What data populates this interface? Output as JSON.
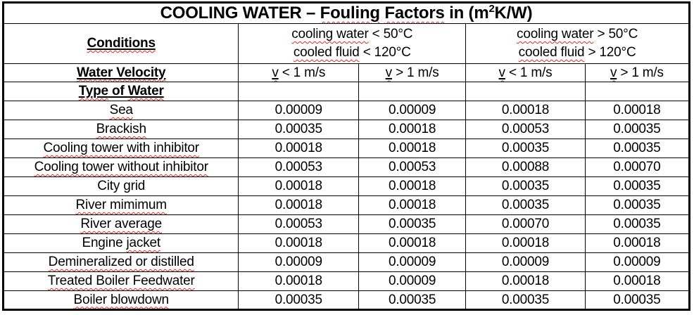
{
  "colors": {
    "squiggle_red": "#e8251c",
    "squiggle_blue": "#2565c9",
    "border": "#000000",
    "background": "#ffffff",
    "text": "#000000"
  },
  "title": {
    "text": "COOLING WATER – Fouling Factors in (m2K/W)",
    "parts": [
      [
        "COOLING WATER – ",
        ""
      ],
      [
        "Fouling",
        "sq"
      ],
      [
        " ",
        ""
      ],
      [
        "Factors",
        "sq"
      ],
      [
        " in (m",
        ""
      ],
      [
        "2",
        "sup"
      ],
      [
        "K/W)",
        ""
      ]
    ]
  },
  "header": {
    "conditions": {
      "parts": [
        [
          "Conditions",
          "sq"
        ]
      ]
    },
    "group_left": {
      "line1_parts": [
        [
          "cooling water",
          "sq"
        ],
        [
          " < 50°C",
          ""
        ]
      ],
      "line2_parts": [
        [
          "cooled fluid",
          "sq"
        ],
        [
          " < 120°C",
          ""
        ]
      ]
    },
    "group_right": {
      "line1_parts": [
        [
          "cooling water",
          "sq"
        ],
        [
          " > 50°C",
          ""
        ]
      ],
      "line2_parts": [
        [
          "cooled fluid",
          "sq"
        ],
        [
          " > 120°C",
          ""
        ]
      ]
    },
    "water_velocity": {
      "parts": [
        [
          "Water Velocity",
          "sq"
        ]
      ]
    },
    "velocity_cols": [
      {
        "parts": [
          [
            "v",
            "uvsq"
          ],
          [
            " < 1 m/s",
            ""
          ]
        ]
      },
      {
        "parts": [
          [
            "v",
            "uvsq"
          ],
          [
            " > 1 m/s",
            ""
          ]
        ]
      },
      {
        "parts": [
          [
            "v",
            "uvsq"
          ],
          [
            " < 1 m/s",
            ""
          ]
        ]
      },
      {
        "parts": [
          [
            "v",
            "uvsq"
          ],
          [
            " > 1 m/s",
            ""
          ]
        ]
      }
    ],
    "type_of_water": {
      "parts": [
        [
          "Type",
          "sq"
        ],
        [
          " of ",
          ""
        ],
        [
          "Water",
          "sq"
        ]
      ]
    }
  },
  "rows": [
    {
      "label": "Sea",
      "label_parts": [
        [
          "Sea",
          "sq"
        ]
      ],
      "values": [
        "0.00009",
        "0.00009",
        "0.00018",
        "0.00018"
      ]
    },
    {
      "label": "Brackish",
      "label_parts": [
        [
          "Brackish",
          "sq"
        ]
      ],
      "values": [
        "0.00035",
        "0.00018",
        "0.00053",
        "0.00035"
      ]
    },
    {
      "label": "Cooling tower with inhibitor",
      "label_parts": [
        [
          "Cooling tower with inhibitor",
          "sq"
        ]
      ],
      "values": [
        "0.00018",
        "0.00018",
        "0.00035",
        "0.00035"
      ]
    },
    {
      "label": "Cooling tower without inhibitor",
      "label_parts": [
        [
          "Cooling tower without inhibitor",
          "sq"
        ]
      ],
      "values": [
        "0.00053",
        "0.00053",
        "0.00088",
        "0.00070"
      ]
    },
    {
      "label": "City grid",
      "label_parts": [
        [
          "City grid",
          ""
        ]
      ],
      "values": [
        "0.00018",
        "0.00018",
        "0.00035",
        "0.00035"
      ]
    },
    {
      "label": "River mimimum",
      "label_parts": [
        [
          "River mimimum",
          "sq"
        ]
      ],
      "values": [
        "0.00018",
        "0.00018",
        "0.00035",
        "0.00035"
      ]
    },
    {
      "label": "River average",
      "label_parts": [
        [
          "River average",
          "sq"
        ]
      ],
      "values": [
        "0.00053",
        "0.00035",
        "0.00070",
        "0.00035"
      ]
    },
    {
      "label": "Engine jacket",
      "label_parts": [
        [
          "Engine ",
          ""
        ],
        [
          "jacket",
          "sq"
        ]
      ],
      "values": [
        "0.00018",
        "0.00018",
        "0.00018",
        "0.00018"
      ]
    },
    {
      "label": "Demineralized or distilled",
      "label_parts": [
        [
          "Demineralized or distilled",
          "sq"
        ]
      ],
      "values": [
        "0.00009",
        "0.00009",
        "0.00009",
        "0.00009"
      ]
    },
    {
      "label": "Treated Boiler Feedwater",
      "label_parts": [
        [
          "Treated Boiler Feedwater",
          "sq"
        ]
      ],
      "values": [
        "0.00018",
        "0.00009",
        "0.00018",
        "0.00018"
      ]
    },
    {
      "label": "Boiler blowdown",
      "label_parts": [
        [
          "Boiler blowdown",
          "sq"
        ]
      ],
      "values": [
        "0.00035",
        "0.00035",
        "0.00035",
        "0.00035"
      ]
    }
  ]
}
